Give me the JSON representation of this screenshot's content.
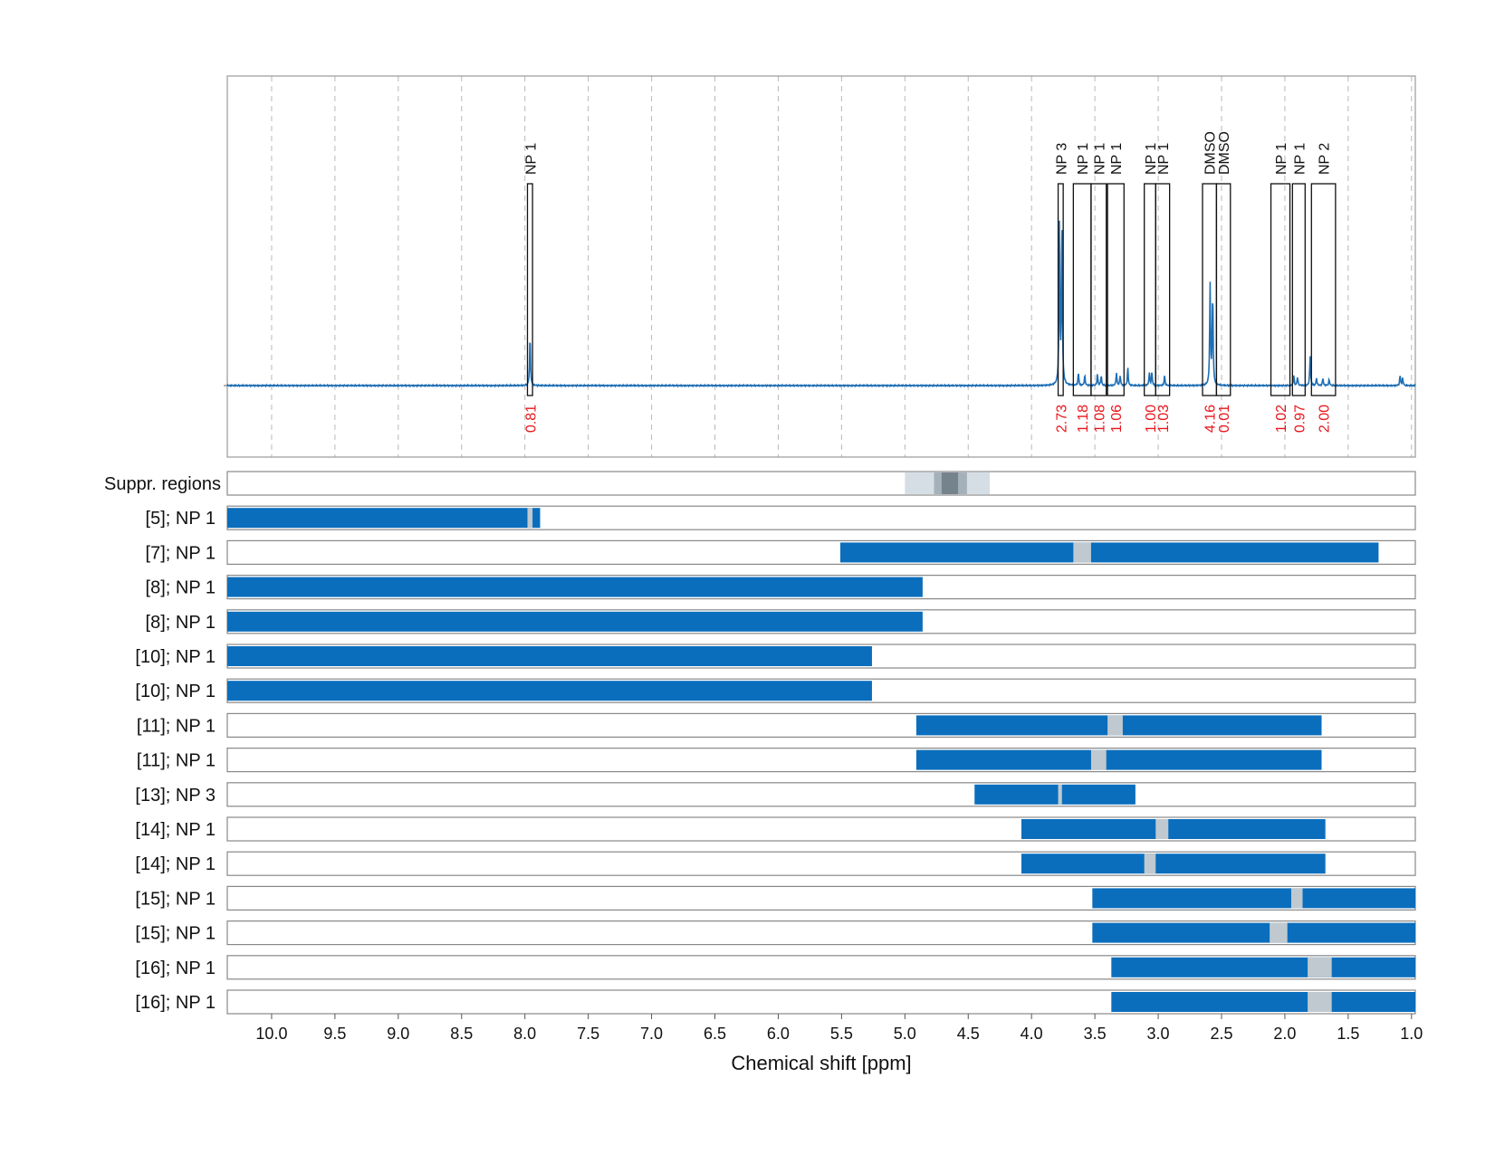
{
  "chart_data": {
    "type": "nmr-spectrum-with-range-bars",
    "xlabel": "Chemical shift [ppm]",
    "xlim": [
      10.35,
      0.97
    ],
    "x_ticks": [
      "10.0",
      "9.5",
      "9.0",
      "8.5",
      "8.0",
      "7.5",
      "7.0",
      "6.5",
      "6.0",
      "5.5",
      "5.0",
      "4.5",
      "4.0",
      "3.5",
      "3.0",
      "2.5",
      "2.0",
      "1.5",
      "1.0"
    ],
    "grid": "vertical dashed",
    "colors": {
      "spectrum": "#1f6fb5",
      "bar": "#0a6ebd",
      "peak_region": "#c0c9cf",
      "integral_label": "#e8161c",
      "suppr_light": "#d5dee5",
      "suppr_mid": "#a5b1ba",
      "suppr_dark": "#75838d"
    },
    "spectrum": {
      "peaks": [
        {
          "ppm": 7.96,
          "height": 0.2
        },
        {
          "ppm": 3.78,
          "height": 0.64
        },
        {
          "ppm": 3.76,
          "height": 0.66
        },
        {
          "ppm": 3.63,
          "height": 0.05
        },
        {
          "ppm": 3.58,
          "height": 0.04
        },
        {
          "ppm": 3.48,
          "height": 0.045
        },
        {
          "ppm": 3.45,
          "height": 0.04
        },
        {
          "ppm": 3.33,
          "height": 0.05
        },
        {
          "ppm": 3.3,
          "height": 0.04
        },
        {
          "ppm": 3.24,
          "height": 0.07
        },
        {
          "ppm": 3.07,
          "height": 0.05
        },
        {
          "ppm": 3.05,
          "height": 0.055
        },
        {
          "ppm": 2.95,
          "height": 0.04
        },
        {
          "ppm": 2.59,
          "height": 0.4
        },
        {
          "ppm": 2.57,
          "height": 0.37
        },
        {
          "ppm": 1.93,
          "height": 0.04
        },
        {
          "ppm": 1.9,
          "height": 0.035
        },
        {
          "ppm": 1.8,
          "height": 0.12
        },
        {
          "ppm": 1.75,
          "height": 0.03
        },
        {
          "ppm": 1.7,
          "height": 0.03
        },
        {
          "ppm": 1.65,
          "height": 0.025
        },
        {
          "ppm": 1.09,
          "height": 0.04
        },
        {
          "ppm": 1.07,
          "height": 0.03
        }
      ]
    },
    "annotations": [
      {
        "label": "NP 1",
        "integral": "0.81",
        "from": 7.98,
        "to": 7.94
      },
      {
        "label": "NP 3",
        "integral": "2.73",
        "from": 3.79,
        "to": 3.75
      },
      {
        "label": "NP 1",
        "integral": "1.18",
        "from": 3.67,
        "to": 3.53
      },
      {
        "label": "NP 1",
        "integral": "1.08",
        "from": 3.53,
        "to": 3.41
      },
      {
        "label": "NP 1",
        "integral": "1.06",
        "from": 3.4,
        "to": 3.27
      },
      {
        "label": "NP 1",
        "integral": "1.00",
        "from": 3.11,
        "to": 3.02
      },
      {
        "label": "NP 1",
        "integral": "1.03",
        "from": 3.02,
        "to": 2.91
      },
      {
        "label": "DMSO",
        "integral": "4.16",
        "from": 2.65,
        "to": 2.54
      },
      {
        "label": "DMSO",
        "integral": "0.01",
        "from": 2.54,
        "to": 2.43
      },
      {
        "label": "NP 1",
        "integral": "1.02",
        "from": 2.11,
        "to": 1.96
      },
      {
        "label": "NP 1",
        "integral": "0.97",
        "from": 1.94,
        "to": 1.84
      },
      {
        "label": "NP 2",
        "integral": "2.00",
        "from": 1.79,
        "to": 1.6
      }
    ],
    "suppr_regions": {
      "label": "Suppr. regions",
      "bands": [
        {
          "from": 5.0,
          "to": 4.33,
          "shade": "light"
        },
        {
          "from": 4.77,
          "to": 4.51,
          "shade": "mid"
        },
        {
          "from": 4.71,
          "to": 4.58,
          "shade": "dark"
        }
      ]
    },
    "rows": [
      {
        "label": "[5]; NP 1",
        "bar": [
          10.35,
          7.88
        ],
        "peak": [
          7.98,
          7.94
        ]
      },
      {
        "label": "[7]; NP 1",
        "bar": [
          5.51,
          1.26
        ],
        "peak": [
          3.67,
          3.53
        ]
      },
      {
        "label": "[8]; NP 1",
        "bar": [
          10.35,
          4.86
        ],
        "peak": null
      },
      {
        "label": "[8]; NP 1",
        "bar": [
          10.35,
          4.86
        ],
        "peak": null
      },
      {
        "label": "[10]; NP 1",
        "bar": [
          10.35,
          5.26
        ],
        "peak": null
      },
      {
        "label": "[10]; NP 1",
        "bar": [
          10.35,
          5.26
        ],
        "peak": null
      },
      {
        "label": "[11]; NP 1",
        "bar": [
          4.91,
          1.71
        ],
        "peak": [
          3.4,
          3.28
        ]
      },
      {
        "label": "[11]; NP 1",
        "bar": [
          4.91,
          1.71
        ],
        "peak": [
          3.53,
          3.41
        ]
      },
      {
        "label": "[13]; NP 3",
        "bar": [
          4.45,
          3.18
        ],
        "peak": [
          3.79,
          3.76
        ]
      },
      {
        "label": "[14]; NP 1",
        "bar": [
          4.08,
          1.68
        ],
        "peak": [
          3.02,
          2.92
        ]
      },
      {
        "label": "[14]; NP 1",
        "bar": [
          4.08,
          1.68
        ],
        "peak": [
          3.11,
          3.02
        ]
      },
      {
        "label": "[15]; NP 1",
        "bar": [
          3.52,
          0.97
        ],
        "peak": [
          1.95,
          1.86
        ]
      },
      {
        "label": "[15]; NP 1",
        "bar": [
          3.52,
          0.97
        ],
        "peak": [
          2.12,
          1.98
        ]
      },
      {
        "label": "[16]; NP 1",
        "bar": [
          3.37,
          0.97
        ],
        "peak": [
          1.82,
          1.63
        ]
      },
      {
        "label": "[16]; NP 1",
        "bar": [
          3.37,
          0.97
        ],
        "peak": [
          1.82,
          1.63
        ]
      }
    ]
  }
}
